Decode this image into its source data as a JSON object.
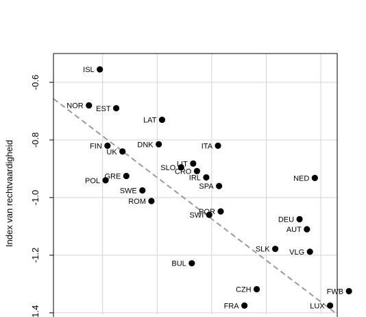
{
  "chart_data": {
    "type": "scatter",
    "title": "",
    "xlabel": "",
    "ylabel": "Index van rechtvaardigheid",
    "xlim": [
      0.22,
      1.26
    ],
    "ylim": [
      -1.405,
      -0.5
    ],
    "y_ticks": [
      -0.6,
      -0.8,
      -1.0,
      -1.2,
      -1.4
    ],
    "y_tick_labels": [
      "-0.6",
      "-0.8",
      "-1.0",
      "-1.2",
      "-1.4"
    ],
    "x_gridlines": [
      0.2,
      0.4,
      0.6,
      0.8,
      1.0,
      1.2
    ],
    "grid": true,
    "regression_line": {
      "style": "dashed",
      "color": "#9a9a9a",
      "x": [
        0.22,
        1.26
      ],
      "y": [
        -0.657,
        -1.405
      ]
    },
    "point_color": "#000000",
    "points": [
      {
        "label": "ISL",
        "x": 0.39,
        "y": -0.555,
        "anchor": "left"
      },
      {
        "label": "NOR",
        "x": 0.35,
        "y": -0.68,
        "anchor": "left"
      },
      {
        "label": "EST",
        "x": 0.45,
        "y": -0.69,
        "anchor": "left"
      },
      {
        "label": "LAT",
        "x": 0.618,
        "y": -0.73,
        "anchor": "left"
      },
      {
        "label": "FIN",
        "x": 0.418,
        "y": -0.82,
        "anchor": "left"
      },
      {
        "label": "UK",
        "x": 0.473,
        "y": -0.84,
        "anchor": "left"
      },
      {
        "label": "DNK",
        "x": 0.606,
        "y": -0.815,
        "anchor": "left"
      },
      {
        "label": "ITA",
        "x": 0.823,
        "y": -0.82,
        "anchor": "left"
      },
      {
        "label": "LIT",
        "x": 0.732,
        "y": -0.882,
        "anchor": "left"
      },
      {
        "label": "SLO",
        "x": 0.688,
        "y": -0.895,
        "anchor": "left"
      },
      {
        "label": "CRO",
        "x": 0.746,
        "y": -0.908,
        "anchor": "left"
      },
      {
        "label": "IRL",
        "x": 0.78,
        "y": -0.93,
        "anchor": "left"
      },
      {
        "label": "GRE",
        "x": 0.487,
        "y": -0.925,
        "anchor": "left"
      },
      {
        "label": "POL",
        "x": 0.411,
        "y": -0.94,
        "anchor": "left"
      },
      {
        "label": "SPA",
        "x": 0.827,
        "y": -0.96,
        "anchor": "left"
      },
      {
        "label": "NED",
        "x": 1.178,
        "y": -0.932,
        "anchor": "left"
      },
      {
        "label": "SWE",
        "x": 0.546,
        "y": -0.975,
        "anchor": "left"
      },
      {
        "label": "ROM",
        "x": 0.579,
        "y": -1.012,
        "anchor": "left"
      },
      {
        "label": "POR",
        "x": 0.833,
        "y": -1.048,
        "anchor": "left"
      },
      {
        "label": "SWI",
        "x": 0.791,
        "y": -1.06,
        "anchor": "left"
      },
      {
        "label": "DEU",
        "x": 1.122,
        "y": -1.075,
        "anchor": "left"
      },
      {
        "label": "AUT",
        "x": 1.149,
        "y": -1.11,
        "anchor": "left"
      },
      {
        "label": "SLK",
        "x": 1.033,
        "y": -1.178,
        "anchor": "left"
      },
      {
        "label": "VLG",
        "x": 1.16,
        "y": -1.188,
        "anchor": "left"
      },
      {
        "label": "BUL",
        "x": 0.727,
        "y": -1.228,
        "anchor": "left"
      },
      {
        "label": "CZH",
        "x": 0.965,
        "y": -1.318,
        "anchor": "left"
      },
      {
        "label": "FWB",
        "x": 1.303,
        "y": -1.325,
        "anchor": "left"
      },
      {
        "label": "FRA",
        "x": 0.92,
        "y": -1.375,
        "anchor": "left"
      },
      {
        "label": "LUX",
        "x": 1.234,
        "y": -1.375,
        "anchor": "left"
      }
    ]
  }
}
